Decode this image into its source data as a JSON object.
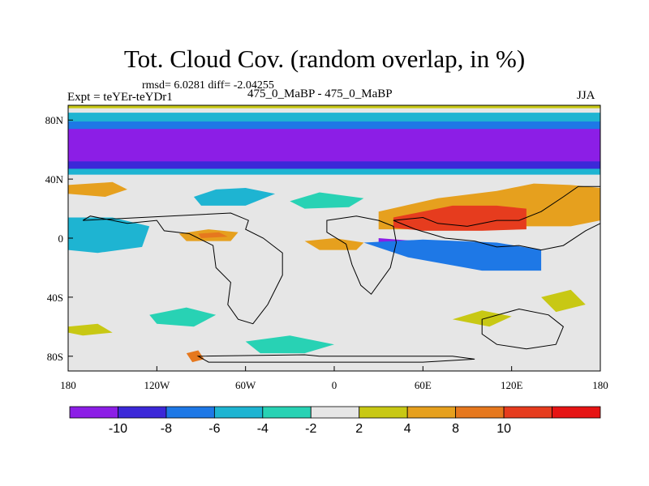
{
  "chart_data": {
    "type": "heatmap",
    "title": "Tot. Cloud Cov. (random overlap, in %)",
    "stats_text": "rmsd= 6.0281 diff= -2.04255",
    "experiment_label": "Expt = teYEr-teYDr1",
    "center_label": "475_0_MaBP - 475_0_MaBP",
    "season": "JJA",
    "xlim": [
      -180,
      180
    ],
    "ylim": [
      -90,
      90
    ],
    "x_ticks": [
      {
        "value": -180,
        "label": "180"
      },
      {
        "value": -120,
        "label": "120W"
      },
      {
        "value": -60,
        "label": "60W"
      },
      {
        "value": 0,
        "label": "0"
      },
      {
        "value": 60,
        "label": "60E"
      },
      {
        "value": 120,
        "label": "120E"
      },
      {
        "value": 180,
        "label": "180"
      }
    ],
    "y_ticks": [
      {
        "value": 80,
        "label": "80N"
      },
      {
        "value": 40,
        "label": "40N"
      },
      {
        "value": 0,
        "label": "0"
      },
      {
        "value": -40,
        "label": "40S"
      },
      {
        "value": -80,
        "label": "80S"
      }
    ],
    "colorbar": {
      "colors": [
        "#8c1ee6",
        "#3c28d8",
        "#1e78e6",
        "#1eb4d2",
        "#28d2b4",
        "#e6e6e6",
        "#c8c814",
        "#e6a01e",
        "#e6781e",
        "#e63c1e",
        "#e61414"
      ],
      "labels": [
        {
          "boundary": 1,
          "label": "-10"
        },
        {
          "boundary": 2,
          "label": "-8"
        },
        {
          "boundary": 3,
          "label": "-6"
        },
        {
          "boundary": 4,
          "label": "-4"
        },
        {
          "boundary": 5,
          "label": "-2"
        },
        {
          "boundary": 6,
          "label": "2"
        },
        {
          "boundary": 7,
          "label": "4"
        },
        {
          "boundary": 8,
          "label": "8"
        },
        {
          "boundary": 9,
          "label": "10"
        }
      ]
    },
    "regions": [
      {
        "name": "north-polar-cap-positive",
        "level": 6,
        "pts": [
          [
            -180,
            90
          ],
          [
            180,
            90
          ],
          [
            180,
            88
          ],
          [
            -180,
            88
          ]
        ]
      },
      {
        "name": "subarctic-cyan-band",
        "level": 3,
        "pts": [
          [
            -180,
            85
          ],
          [
            180,
            85
          ],
          [
            180,
            78
          ],
          [
            -180,
            78
          ]
        ]
      },
      {
        "name": "subarctic-blue-band",
        "level": 2,
        "pts": [
          [
            -180,
            79
          ],
          [
            180,
            79
          ],
          [
            180,
            73
          ],
          [
            -180,
            73
          ]
        ]
      },
      {
        "name": "arctic-negative-band",
        "level": 0,
        "pts": [
          [
            -180,
            74
          ],
          [
            180,
            74
          ],
          [
            180,
            50
          ],
          [
            -180,
            50
          ]
        ]
      },
      {
        "name": "midlat-blue-band",
        "level": 1,
        "pts": [
          [
            -180,
            52
          ],
          [
            180,
            52
          ],
          [
            180,
            46
          ],
          [
            -180,
            46
          ]
        ]
      },
      {
        "name": "midlat-cyan-band",
        "level": 3,
        "pts": [
          [
            -180,
            47
          ],
          [
            180,
            47
          ],
          [
            180,
            43
          ],
          [
            -180,
            43
          ]
        ]
      },
      {
        "name": "north-pacific-positive",
        "level": 7,
        "pts": [
          [
            -180,
            36
          ],
          [
            -150,
            38
          ],
          [
            -140,
            33
          ],
          [
            -155,
            28
          ],
          [
            -180,
            30
          ]
        ]
      },
      {
        "name": "north-atlantic-cyan",
        "level": 3,
        "pts": [
          [
            -95,
            28
          ],
          [
            -80,
            33
          ],
          [
            -60,
            34
          ],
          [
            -40,
            30
          ],
          [
            -60,
            22
          ],
          [
            -90,
            22
          ]
        ]
      },
      {
        "name": "eastern-atlantic-cyan",
        "level": 4,
        "pts": [
          [
            -30,
            25
          ],
          [
            -10,
            31
          ],
          [
            20,
            27
          ],
          [
            10,
            21
          ],
          [
            -20,
            20
          ]
        ]
      },
      {
        "name": "tropical-pacific-negative-west",
        "level": 0,
        "pts": [
          [
            -180,
            6
          ],
          [
            -165,
            9
          ],
          [
            -145,
            5
          ],
          [
            -150,
            -2
          ],
          [
            -170,
            -5
          ],
          [
            -180,
            -2
          ]
        ]
      },
      {
        "name": "tropical-pacific-blue-west",
        "level": 1,
        "pts": [
          [
            -180,
            10
          ],
          [
            -160,
            11
          ],
          [
            -140,
            7
          ],
          [
            -145,
            -4
          ],
          [
            -170,
            -7
          ],
          [
            -180,
            -5
          ]
        ]
      },
      {
        "name": "tropical-pacific-cyan-west",
        "level": 3,
        "pts": [
          [
            -180,
            14
          ],
          [
            -150,
            14
          ],
          [
            -125,
            8
          ],
          [
            -130,
            -6
          ],
          [
            -160,
            -10
          ],
          [
            -180,
            -8
          ]
        ]
      },
      {
        "name": "equatorial-atlantic-orange",
        "level": 7,
        "pts": [
          [
            -105,
            3
          ],
          [
            -85,
            6
          ],
          [
            -65,
            4
          ],
          [
            -70,
            -2
          ],
          [
            -100,
            -2
          ]
        ]
      },
      {
        "name": "equatorial-atlantic-red",
        "level": 8,
        "pts": [
          [
            -92,
            3
          ],
          [
            -78,
            4
          ],
          [
            -72,
            1
          ],
          [
            -90,
            0
          ]
        ]
      },
      {
        "name": "tropical-africa-orange",
        "level": 7,
        "pts": [
          [
            -20,
            -2
          ],
          [
            0,
            0
          ],
          [
            20,
            -3
          ],
          [
            15,
            -8
          ],
          [
            -10,
            -8
          ]
        ]
      },
      {
        "name": "north-indian-positive",
        "level": 7,
        "pts": [
          [
            30,
            18
          ],
          [
            70,
            27
          ],
          [
            110,
            32
          ],
          [
            135,
            37
          ],
          [
            160,
            36
          ],
          [
            180,
            34
          ],
          [
            180,
            12
          ],
          [
            160,
            8
          ],
          [
            130,
            8
          ],
          [
            100,
            8
          ],
          [
            60,
            6
          ],
          [
            30,
            6
          ]
        ]
      },
      {
        "name": "north-indian-core",
        "level": 9,
        "pts": [
          [
            40,
            14
          ],
          [
            80,
            22
          ],
          [
            110,
            22
          ],
          [
            130,
            20
          ],
          [
            130,
            6
          ],
          [
            100,
            5
          ],
          [
            60,
            5
          ],
          [
            40,
            7
          ]
        ]
      },
      {
        "name": "south-asia-negative",
        "level": 0,
        "pts": [
          [
            30,
            0
          ],
          [
            70,
            -3
          ],
          [
            110,
            -7
          ],
          [
            135,
            -8
          ],
          [
            130,
            -18
          ],
          [
            100,
            -20
          ],
          [
            60,
            -12
          ],
          [
            30,
            -6
          ]
        ]
      },
      {
        "name": "south-asia-blue",
        "level": 2,
        "pts": [
          [
            20,
            -3
          ],
          [
            60,
            -1
          ],
          [
            110,
            -3
          ],
          [
            140,
            -8
          ],
          [
            140,
            -22
          ],
          [
            100,
            -22
          ],
          [
            50,
            -13
          ]
        ]
      },
      {
        "name": "southern-ocean-yellow",
        "level": 6,
        "pts": [
          [
            -180,
            -60
          ],
          [
            -160,
            -58
          ],
          [
            -150,
            -64
          ],
          [
            -170,
            -66
          ],
          [
            -180,
            -64
          ]
        ]
      },
      {
        "name": "south-pacific-cyan",
        "level": 4,
        "pts": [
          [
            -125,
            -52
          ],
          [
            -100,
            -47
          ],
          [
            -80,
            -52
          ],
          [
            -95,
            -60
          ],
          [
            -120,
            -58
          ]
        ]
      },
      {
        "name": "southern-orange-spot",
        "level": 8,
        "pts": [
          [
            -100,
            -78
          ],
          [
            -92,
            -76
          ],
          [
            -88,
            -82
          ],
          [
            -96,
            -84
          ]
        ]
      },
      {
        "name": "antarctic-cyan",
        "level": 4,
        "pts": [
          [
            -60,
            -70
          ],
          [
            -30,
            -66
          ],
          [
            0,
            -72
          ],
          [
            -20,
            -78
          ],
          [
            -50,
            -78
          ]
        ]
      },
      {
        "name": "south-indian-yellow",
        "level": 6,
        "pts": [
          [
            80,
            -55
          ],
          [
            100,
            -49
          ],
          [
            120,
            -53
          ],
          [
            105,
            -60
          ]
        ]
      },
      {
        "name": "australia-yellow",
        "level": 6,
        "pts": [
          [
            140,
            -40
          ],
          [
            160,
            -35
          ],
          [
            170,
            -45
          ],
          [
            150,
            -50
          ]
        ]
      }
    ],
    "continents": [
      {
        "name": "americas",
        "pts": [
          [
            -170,
            12
          ],
          [
            -165,
            15
          ],
          [
            -140,
            10
          ],
          [
            -120,
            12
          ],
          [
            -115,
            5
          ],
          [
            -98,
            3
          ],
          [
            -82,
            -5
          ],
          [
            -80,
            -20
          ],
          [
            -70,
            -30
          ],
          [
            -72,
            -45
          ],
          [
            -65,
            -55
          ],
          [
            -55,
            -58
          ],
          [
            -45,
            -45
          ],
          [
            -35,
            -25
          ],
          [
            -35,
            -10
          ],
          [
            -48,
            0
          ],
          [
            -60,
            6
          ],
          [
            -58,
            12
          ],
          [
            -70,
            17
          ]
        ]
      },
      {
        "name": "africa",
        "pts": [
          [
            -5,
            12
          ],
          [
            15,
            15
          ],
          [
            30,
            12
          ],
          [
            40,
            8
          ],
          [
            42,
            -3
          ],
          [
            38,
            -20
          ],
          [
            25,
            -38
          ],
          [
            18,
            -32
          ],
          [
            12,
            -18
          ],
          [
            8,
            -4
          ],
          [
            -5,
            4
          ]
        ]
      },
      {
        "name": "asia",
        "pts": [
          [
            40,
            12
          ],
          [
            60,
            14
          ],
          [
            70,
            10
          ],
          [
            90,
            8
          ],
          [
            110,
            12
          ],
          [
            125,
            12
          ],
          [
            140,
            18
          ],
          [
            155,
            28
          ],
          [
            165,
            35
          ],
          [
            180,
            35
          ],
          [
            180,
            10
          ],
          [
            170,
            5
          ],
          [
            155,
            -5
          ],
          [
            140,
            -8
          ],
          [
            125,
            -5
          ],
          [
            110,
            -6
          ],
          [
            95,
            -2
          ],
          [
            75,
            0
          ],
          [
            55,
            6
          ]
        ]
      },
      {
        "name": "australia",
        "pts": [
          [
            100,
            -55
          ],
          [
            125,
            -48
          ],
          [
            145,
            -52
          ],
          [
            155,
            -60
          ],
          [
            150,
            -72
          ],
          [
            130,
            -75
          ],
          [
            110,
            -72
          ],
          [
            100,
            -65
          ]
        ]
      },
      {
        "name": "antarctica",
        "pts": [
          [
            -92,
            -80
          ],
          [
            -20,
            -79
          ],
          [
            -10,
            -80
          ],
          [
            80,
            -80
          ],
          [
            95,
            -82
          ],
          [
            60,
            -84
          ],
          [
            -85,
            -84
          ]
        ]
      }
    ]
  }
}
